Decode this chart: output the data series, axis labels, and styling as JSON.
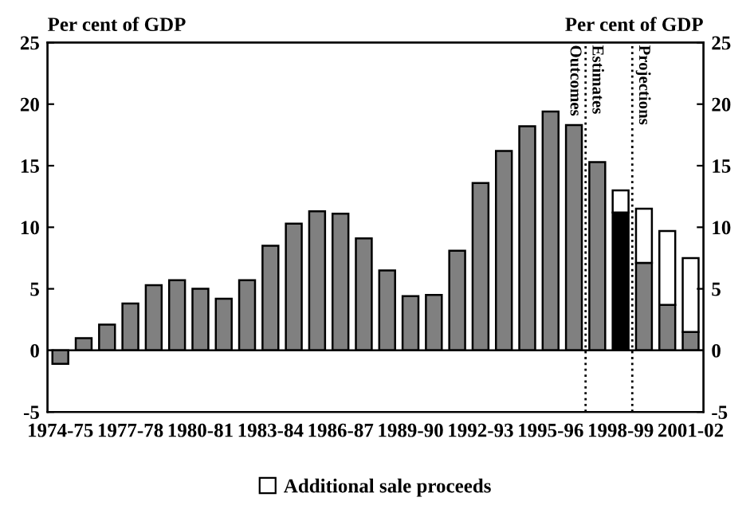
{
  "chart_data": {
    "type": "bar",
    "stacked": true,
    "categories": [
      "1974-75",
      null,
      null,
      "1977-78",
      null,
      null,
      "1980-81",
      null,
      null,
      "1983-84",
      null,
      null,
      "1986-87",
      null,
      null,
      "1989-90",
      null,
      null,
      "1992-93",
      null,
      null,
      "1995-96",
      null,
      null,
      "1998-99",
      null,
      null,
      "2001-02"
    ],
    "series": [
      {
        "colors": [
          "#808080",
          "#808080",
          "#808080",
          "#808080",
          "#808080",
          "#808080",
          "#808080",
          "#808080",
          "#808080",
          "#808080",
          "#808080",
          "#808080",
          "#808080",
          "#808080",
          "#808080",
          "#808080",
          "#808080",
          "#808080",
          "#808080",
          "#808080",
          "#808080",
          "#808080",
          "#808080",
          "#808080",
          "#000000",
          "#808080",
          "#808080",
          "#808080"
        ],
        "values": [
          -1.1,
          1.0,
          2.1,
          3.8,
          5.3,
          5.7,
          5.0,
          4.2,
          5.7,
          8.5,
          10.3,
          11.3,
          11.1,
          9.1,
          6.5,
          4.4,
          4.5,
          8.1,
          13.6,
          16.2,
          18.2,
          19.4,
          18.3,
          15.3,
          11.2,
          7.1,
          3.7,
          1.5
        ]
      },
      {
        "name": "Additional sale proceeds",
        "color": "#ffffff",
        "values": [
          null,
          null,
          null,
          null,
          null,
          null,
          null,
          null,
          null,
          null,
          null,
          null,
          null,
          null,
          null,
          null,
          null,
          null,
          null,
          null,
          null,
          null,
          null,
          null,
          1.8,
          4.4,
          6.0,
          6.0
        ]
      }
    ],
    "ylabel": "Per cent of GDP",
    "y2label": "Per cent of GDP",
    "ylim": [
      -5,
      25
    ],
    "yticks": [
      -5,
      0,
      5,
      10,
      15,
      20,
      25
    ],
    "y2lim": [
      -5,
      25
    ],
    "y2ticks": [
      -5,
      0,
      5,
      10,
      15,
      20,
      25
    ],
    "annotations": [
      "Outcomes",
      "Estimates",
      "Projections"
    ],
    "legend": "bottom",
    "grid": false
  }
}
